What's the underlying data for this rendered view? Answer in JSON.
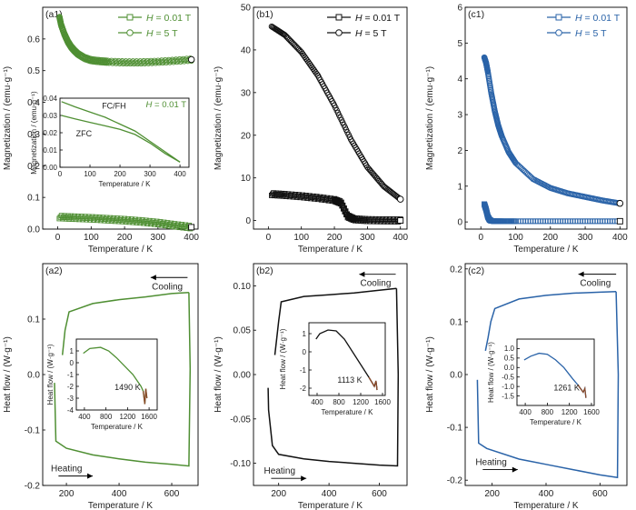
{
  "colors": {
    "green": "#4f8f33",
    "black": "#111111",
    "blue": "#2a63a8",
    "brown": "#8a4a2a"
  },
  "chart_data": [
    {
      "id": "a1",
      "type": "scatter",
      "panel_label": "(a1)",
      "color_key": "green",
      "xlabel": "Temperature / K",
      "ylabel": "Magnetization / (emu·g⁻¹)",
      "xlim": [
        -45,
        420
      ],
      "ylim": [
        0,
        0.7
      ],
      "xticks": [
        0,
        100,
        200,
        300,
        400
      ],
      "xticklabels": [
        "0",
        "100",
        "200",
        "300",
        "400"
      ],
      "yticks": [
        0,
        0.1,
        0.2,
        0.3,
        0.4,
        0.5,
        0.6
      ],
      "yticklabels": [
        "0.0",
        "0.1",
        "0.2",
        "0.3",
        "0.4",
        "0.5",
        "0.6"
      ],
      "legend": {
        "position": "top-right",
        "items": [
          {
            "h": "H",
            "text": " = 0.01 T"
          },
          {
            "h": "H",
            "text": " = 5 T"
          }
        ]
      },
      "series": [
        {
          "name": "H = 0.01 T",
          "marker": "square",
          "band": 0.008,
          "x": [
            5,
            50,
            100,
            150,
            200,
            250,
            300,
            350,
            400
          ],
          "y": [
            0.038,
            0.036,
            0.034,
            0.031,
            0.028,
            0.024,
            0.019,
            0.012,
            0.006
          ]
        },
        {
          "name": "H = 5 T",
          "marker": "circle",
          "band": 0.006,
          "x": [
            5,
            10,
            20,
            30,
            40,
            50,
            60,
            80,
            100,
            125,
            150,
            200,
            250,
            300,
            350,
            400
          ],
          "y": [
            0.67,
            0.645,
            0.615,
            0.592,
            0.575,
            0.563,
            0.553,
            0.54,
            0.533,
            0.53,
            0.528,
            0.526,
            0.526,
            0.528,
            0.531,
            0.535
          ]
        }
      ],
      "inset": {
        "type": "line",
        "xlabel": "Temperature / K",
        "ylabel": "Magnetization / (emu·g⁻¹)",
        "title_h": "H",
        "title_text": " = 0.01 T",
        "xlim": [
          0,
          430
        ],
        "ylim": [
          0,
          0.04
        ],
        "xticks": [
          0,
          100,
          200,
          300,
          400
        ],
        "xticklabels": [
          "0",
          "100",
          "200",
          "300",
          "400"
        ],
        "yticks": [
          0,
          0.01,
          0.02,
          0.03,
          0.04
        ],
        "yticklabels": [
          "0.00",
          "0.01",
          "0.02",
          "0.03",
          "0.04"
        ],
        "series": [
          {
            "name": "FC/FH",
            "x": [
              5,
              50,
              100,
              150,
              200,
              250,
              300,
              350,
              400
            ],
            "y": [
              0.038,
              0.035,
              0.032,
              0.029,
              0.025,
              0.021,
              0.015,
              0.009,
              0.003
            ]
          },
          {
            "name": "ZFC",
            "x": [
              5,
              50,
              100,
              150,
              200,
              250,
              300,
              350,
              400
            ],
            "y": [
              0.03,
              0.028,
              0.026,
              0.024,
              0.022,
              0.019,
              0.014,
              0.008,
              0.003
            ]
          }
        ],
        "annotations": [
          {
            "text": "FC/FH",
            "x": 180,
            "y": 0.034
          },
          {
            "text": "ZFC",
            "x": 80,
            "y": 0.018
          }
        ]
      }
    },
    {
      "id": "b1",
      "type": "scatter",
      "panel_label": "(b1)",
      "color_key": "black",
      "xlabel": "Temperature / K",
      "ylabel": "Magnetization / (emu·g⁻¹)",
      "xlim": [
        -45,
        420
      ],
      "ylim": [
        -2,
        50
      ],
      "xticks": [
        0,
        100,
        200,
        300,
        400
      ],
      "xticklabels": [
        "0",
        "100",
        "200",
        "300",
        "400"
      ],
      "yticks": [
        0,
        10,
        20,
        30,
        40,
        50
      ],
      "yticklabels": [
        "0",
        "10",
        "20",
        "30",
        "40",
        "50"
      ],
      "legend": {
        "position": "top-right",
        "items": [
          {
            "h": "H",
            "text": " = 0.01 T"
          },
          {
            "h": "H",
            "text": " = 5 T"
          }
        ]
      },
      "series": [
        {
          "name": "H = 0.01 T",
          "marker": "square",
          "band": 0.5,
          "x": [
            10,
            50,
            100,
            150,
            200,
            220,
            240,
            260,
            300,
            350,
            400
          ],
          "y": [
            6.2,
            6.0,
            5.7,
            5.3,
            4.8,
            4.2,
            1.0,
            0.3,
            0.1,
            0.05,
            0.02
          ]
        },
        {
          "name": "H = 5 T",
          "marker": "circle",
          "band": 0,
          "x": [
            10,
            50,
            100,
            150,
            200,
            250,
            300,
            350,
            400
          ],
          "y": [
            45.5,
            43.5,
            39.5,
            34,
            27,
            19,
            12.5,
            8,
            5
          ]
        }
      ]
    },
    {
      "id": "c1",
      "type": "scatter",
      "panel_label": "(c1)",
      "color_key": "blue",
      "xlabel": "Temperature / K",
      "ylabel": "Magnetization / (emu·g⁻¹)",
      "xlim": [
        -45,
        420
      ],
      "ylim": [
        -0.2,
        6
      ],
      "xticks": [
        0,
        100,
        200,
        300,
        400
      ],
      "xticklabels": [
        "0",
        "100",
        "200",
        "300",
        "400"
      ],
      "yticks": [
        0,
        1,
        2,
        3,
        4,
        5,
        6
      ],
      "yticklabels": [
        "0",
        "1",
        "2",
        "3",
        "4",
        "5",
        "6"
      ],
      "legend": {
        "position": "top-right",
        "items": [
          {
            "h": "H",
            "text": " = 0.01 T"
          },
          {
            "h": "H",
            "text": " = 5 T"
          }
        ]
      },
      "series": [
        {
          "name": "H = 0.01 T",
          "marker": "square",
          "band": 0,
          "x": [
            10,
            15,
            20,
            25,
            30,
            40,
            60,
            100,
            200,
            300,
            400
          ],
          "y": [
            0.5,
            0.35,
            0.15,
            0.06,
            0.03,
            0.02,
            0.02,
            0.02,
            0.02,
            0.02,
            0.02
          ]
        },
        {
          "name": "H = 5 T",
          "marker": "circle",
          "band": 0,
          "x": [
            10,
            15,
            20,
            30,
            40,
            50,
            60,
            80,
            100,
            150,
            200,
            250,
            300,
            350,
            400
          ],
          "y": [
            4.6,
            4.45,
            4.2,
            3.6,
            3.1,
            2.7,
            2.4,
            1.95,
            1.65,
            1.2,
            0.95,
            0.8,
            0.7,
            0.6,
            0.52
          ]
        }
      ]
    },
    {
      "id": "a2",
      "type": "line",
      "panel_label": "(a2)",
      "color_key": "green",
      "xlabel": "Temperature / K",
      "ylabel": "Heat flow / (W·g⁻¹)",
      "xlim": [
        110,
        700
      ],
      "ylim": [
        -0.2,
        0.2
      ],
      "xticks": [
        200,
        400,
        600
      ],
      "xticklabels": [
        "200",
        "400",
        "600"
      ],
      "yticks": [
        -0.2,
        -0.1,
        0,
        0.1
      ],
      "yticklabels": [
        "-0.2",
        "-0.1",
        "0.0",
        "0.1"
      ],
      "arrows": [
        {
          "label": "Cooling",
          "dir": "left",
          "x0": 660,
          "x1": 520,
          "y": 0.175
        },
        {
          "label": "Heating",
          "dir": "right",
          "x0": 170,
          "x1": 300,
          "y": -0.183
        }
      ],
      "series": [
        {
          "name": "Cooling",
          "x": [
            665,
            600,
            500,
            400,
            300,
            210,
            195,
            185
          ],
          "y": [
            0.148,
            0.146,
            0.14,
            0.135,
            0.128,
            0.113,
            0.08,
            0.035
          ]
        },
        {
          "name": "Heating",
          "x": [
            155,
            160,
            200,
            300,
            400,
            500,
            600,
            665,
            670,
            665
          ],
          "y": [
            -0.015,
            -0.12,
            -0.133,
            -0.145,
            -0.152,
            -0.158,
            -0.162,
            -0.165,
            0.01,
            0.148
          ]
        }
      ],
      "inset": {
        "type": "line",
        "xlabel": "Temperature / K",
        "ylabel": "Heat flow / (W·g⁻¹)",
        "xlim": [
          250,
          1750
        ],
        "ylim": [
          -4,
          2
        ],
        "xticks": [
          400,
          800,
          1200,
          1600
        ],
        "xticklabels": [
          "400",
          "800",
          "1200",
          "1600"
        ],
        "yticks": [
          -4,
          -3,
          -2,
          -1,
          0,
          1
        ],
        "yticklabels": [
          "-4",
          "-3",
          "-2",
          "-1",
          "0",
          "1"
        ],
        "series": [
          {
            "name": "",
            "x": [
              380,
              500,
              700,
              850,
              1000,
              1150,
              1300,
              1450,
              1490,
              1520,
              1540,
              1560
            ],
            "y": [
              0.8,
              1.2,
              1.3,
              1.0,
              0.4,
              -0.3,
              -1.0,
              -2.0,
              -2.4,
              -3.5,
              -2.2,
              -3.0
            ]
          }
        ],
        "annotations": [
          {
            "text": "1490 K",
            "x": 1200,
            "y": -2.3
          }
        ]
      }
    },
    {
      "id": "b2",
      "type": "line",
      "panel_label": "(b2)",
      "color_key": "black",
      "xlabel": "Temperature / K",
      "ylabel": "Heat flow / (W·g⁻¹)",
      "xlim": [
        100,
        710
      ],
      "ylim": [
        -0.125,
        0.125
      ],
      "xticks": [
        200,
        400,
        600
      ],
      "xticklabels": [
        "200",
        "400",
        "600"
      ],
      "yticks": [
        -0.1,
        -0.05,
        0,
        0.05,
        0.1
      ],
      "yticklabels": [
        "-0.10",
        "-0.05",
        "0.00",
        "0.05",
        "0.10"
      ],
      "arrows": [
        {
          "label": "Cooling",
          "dir": "left",
          "x0": 665,
          "x1": 520,
          "y": 0.113
        },
        {
          "label": "Heating",
          "dir": "right",
          "x0": 170,
          "x1": 310,
          "y": -0.117
        }
      ],
      "series": [
        {
          "name": "Cooling",
          "x": [
            668,
            600,
            500,
            400,
            300,
            210,
            200,
            192,
            185
          ],
          "y": [
            0.097,
            0.095,
            0.092,
            0.09,
            0.088,
            0.082,
            0.06,
            0.04,
            0.022
          ]
        },
        {
          "name": "Heating",
          "x": [
            158,
            160,
            175,
            200,
            300,
            400,
            500,
            600,
            672,
            675,
            668
          ],
          "y": [
            -0.015,
            -0.04,
            -0.08,
            -0.09,
            -0.095,
            -0.098,
            -0.1,
            -0.102,
            -0.103,
            0.0,
            0.097
          ]
        }
      ],
      "inset": {
        "type": "line",
        "xlabel": "Temperature / K",
        "ylabel": "Heat flow / (W·g⁻¹)",
        "xlim": [
          250,
          1650
        ],
        "ylim": [
          -2.4,
          1.6
        ],
        "xticks": [
          400,
          800,
          1200,
          1600
        ],
        "xticklabels": [
          "400",
          "800",
          "1200",
          "1600"
        ],
        "yticks": [
          -2,
          -1,
          0,
          1
        ],
        "yticklabels": [
          "-2",
          "-1",
          "0",
          "1"
        ],
        "series": [
          {
            "name": "",
            "x": [
              380,
              450,
              600,
              750,
              900,
              1050,
              1200,
              1350,
              1450,
              1480,
              1500
            ],
            "y": [
              0.7,
              1.0,
              1.2,
              1.15,
              0.7,
              0.0,
              -0.7,
              -1.4,
              -1.9,
              -1.6,
              -2.1
            ]
          }
        ],
        "annotations": [
          {
            "text": "1113 K",
            "x": 1000,
            "y": -1.7
          }
        ]
      }
    },
    {
      "id": "c2",
      "type": "line",
      "panel_label": "(c2)",
      "color_key": "blue",
      "xlabel": "Temperature / K",
      "ylabel": "Heat flow / (W·g⁻¹)",
      "xlim": [
        100,
        700
      ],
      "ylim": [
        -0.21,
        0.21
      ],
      "xticks": [
        200,
        400,
        600
      ],
      "xticklabels": [
        "200",
        "400",
        "600"
      ],
      "yticks": [
        -0.2,
        -0.1,
        0,
        0.1,
        0.2
      ],
      "yticklabels": [
        "-0.2",
        "-0.1",
        "0.0",
        "0.1",
        "0.2"
      ],
      "arrows": [
        {
          "label": "Cooling",
          "dir": "left",
          "x0": 660,
          "x1": 520,
          "y": 0.19
        },
        {
          "label": "Heating",
          "dir": "right",
          "x0": 165,
          "x1": 295,
          "y": -0.18
        }
      ],
      "series": [
        {
          "name": "Cooling",
          "x": [
            660,
            600,
            500,
            400,
            300,
            210,
            195,
            185,
            175
          ],
          "y": [
            0.157,
            0.156,
            0.154,
            0.15,
            0.143,
            0.125,
            0.1,
            0.07,
            0.045
          ]
        },
        {
          "name": "Heating",
          "x": [
            145,
            150,
            180,
            300,
            400,
            500,
            600,
            665,
            668,
            660
          ],
          "y": [
            -0.01,
            -0.13,
            -0.14,
            -0.16,
            -0.17,
            -0.18,
            -0.19,
            -0.195,
            0.0,
            0.157
          ]
        }
      ],
      "inset": {
        "type": "line",
        "xlabel": "Temperature / K",
        "ylabel": "Heat flow / (W·g⁻¹)",
        "xlim": [
          250,
          1650
        ],
        "ylim": [
          -2,
          1.5
        ],
        "xticks": [
          400,
          800,
          1200,
          1600
        ],
        "xticklabels": [
          "400",
          "800",
          "1200",
          "1600"
        ],
        "yticks": [
          -1.5,
          -1,
          -0.5,
          0,
          0.5,
          1
        ],
        "yticklabels": [
          "-1.5",
          "-1.0",
          "-0.5",
          "0.0",
          "0.5",
          "1.0"
        ],
        "series": [
          {
            "name": "",
            "x": [
              380,
              500,
              650,
              800,
              950,
              1100,
              1261,
              1350,
              1450,
              1480,
              1500
            ],
            "y": [
              0.4,
              0.6,
              0.75,
              0.7,
              0.4,
              0.0,
              -0.6,
              -0.9,
              -1.3,
              -1.1,
              -1.6
            ]
          }
        ],
        "annotations": [
          {
            "text": "1261 K",
            "x": 1150,
            "y": -1.2
          }
        ]
      }
    }
  ]
}
